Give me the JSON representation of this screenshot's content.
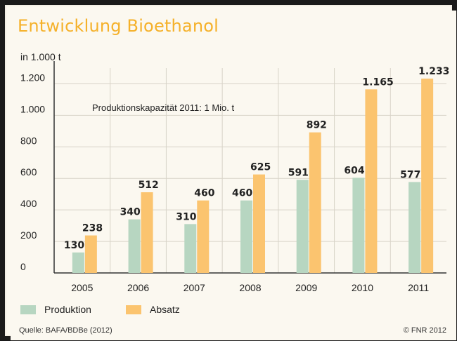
{
  "title": "Entwicklung Bioethanol",
  "unit_label": "in 1.000 t",
  "annotation": "Produktionskapazität 2011: 1 Mio. t",
  "source": "Quelle: BAFA/BDBe (2012)",
  "copyright": "© FNR 2012",
  "colors": {
    "title": "#f5b12a",
    "produktion": "#b7d6c1",
    "absatz": "#fbc46f",
    "grid": "#d8d3c8",
    "axis": "#333333"
  },
  "chart_data": {
    "type": "bar",
    "title": "Entwicklung Bioethanol",
    "ylabel": "in 1.000 t",
    "xlabel": "",
    "categories": [
      "2005",
      "2006",
      "2007",
      "2008",
      "2009",
      "2010",
      "2011"
    ],
    "series": [
      {
        "name": "Produktion",
        "values": [
          130,
          340,
          310,
          460,
          591,
          604,
          577
        ],
        "labels": [
          "130",
          "340",
          "310",
          "460",
          "591",
          "604",
          "577"
        ]
      },
      {
        "name": "Absatz",
        "values": [
          238,
          512,
          460,
          625,
          892,
          1165,
          1233
        ],
        "labels": [
          "238",
          "512",
          "460",
          "625",
          "892",
          "1.165",
          "1.233"
        ]
      }
    ],
    "ylim": [
      0,
      1300
    ],
    "yticks": [
      0,
      200,
      400,
      600,
      800,
      1000,
      1200
    ],
    "ytick_labels": [
      "0",
      "200",
      "400",
      "600",
      "800",
      "1.000",
      "1.200"
    ],
    "grid": true,
    "legend_position": "bottom-left"
  }
}
